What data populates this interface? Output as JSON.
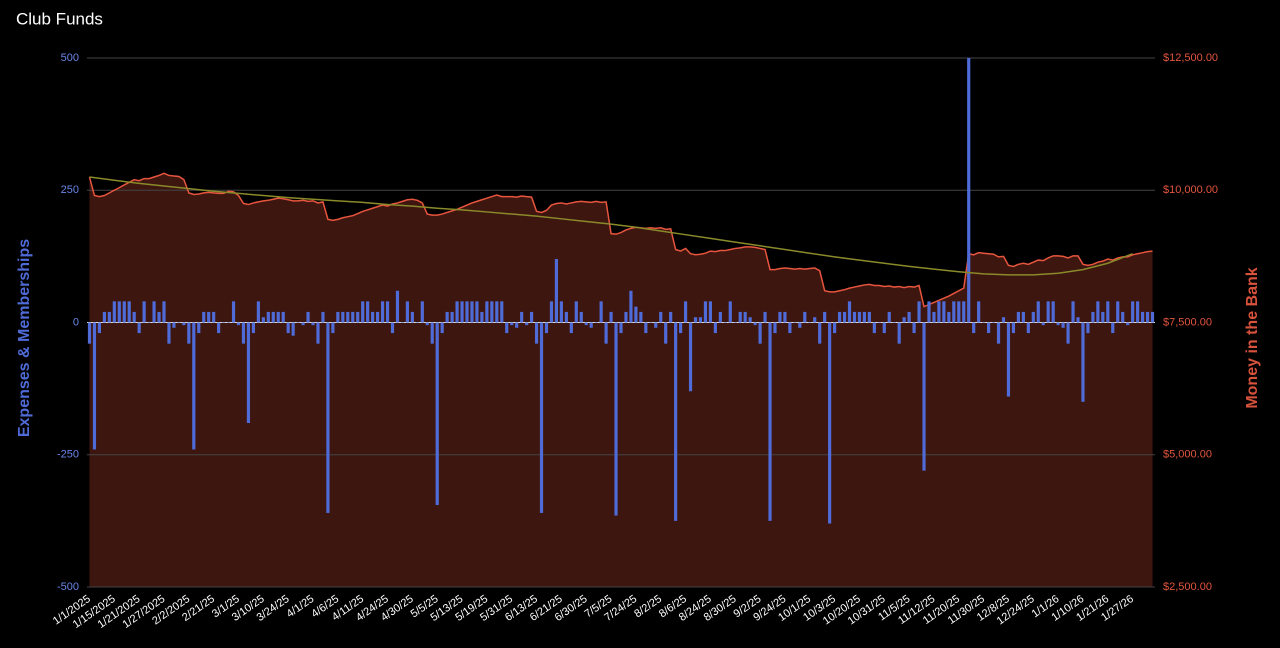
{
  "chart_data": {
    "type": "bar",
    "title": "Club Funds",
    "ylabel": "Expenses & Memberships",
    "y2label": "Money in the Bank",
    "ylim": [
      -500,
      500
    ],
    "yticks": [
      500,
      250,
      0,
      -250,
      -500
    ],
    "y2lim": [
      2500,
      12500
    ],
    "y2ticks": [
      {
        "value": 12500,
        "label": "$12,500.00"
      },
      {
        "value": 10000,
        "label": "$10,000.00"
      },
      {
        "value": 7500,
        "label": "$7,500.00"
      },
      {
        "value": 5000,
        "label": "$5,000.00"
      },
      {
        "value": 2500,
        "label": "$2,500.00"
      }
    ],
    "grid": true,
    "categories": [
      "1/1/2025",
      null,
      null,
      null,
      null,
      "1/15/2025",
      null,
      null,
      null,
      null,
      "1/21/2025",
      null,
      null,
      null,
      null,
      "1/27/2025",
      null,
      null,
      null,
      null,
      "2/2/2025",
      null,
      null,
      null,
      null,
      "2/21/25",
      null,
      null,
      null,
      null,
      "3/1/25",
      null,
      null,
      null,
      null,
      "3/10/25",
      null,
      null,
      null,
      null,
      "3/24/25",
      null,
      null,
      null,
      null,
      "4/1/25",
      null,
      null,
      null,
      null,
      "4/6/25",
      null,
      null,
      null,
      null,
      "4/11/25",
      null,
      null,
      null,
      null,
      "4/24/25",
      null,
      null,
      null,
      null,
      "4/30/25",
      null,
      null,
      null,
      null,
      "5/5/25",
      null,
      null,
      null,
      null,
      "5/13/25",
      null,
      null,
      null,
      null,
      "5/19/25",
      null,
      null,
      null,
      null,
      "5/31/25",
      null,
      null,
      null,
      null,
      "6/13/25",
      null,
      null,
      null,
      null,
      "6/21/25",
      null,
      null,
      null,
      null,
      "6/30/25",
      null,
      null,
      null,
      null,
      "7/5/25",
      null,
      null,
      null,
      null,
      "7/24/25",
      null,
      null,
      null,
      null,
      "8/2/25",
      null,
      null,
      null,
      null,
      "8/6/25",
      null,
      null,
      null,
      null,
      "8/24/25",
      null,
      null,
      null,
      null,
      "8/30/25",
      null,
      null,
      null,
      null,
      "9/2/25",
      null,
      null,
      null,
      null,
      "9/24/25",
      null,
      null,
      null,
      null,
      "10/1/25",
      null,
      null,
      null,
      null,
      "10/3/25",
      null,
      null,
      null,
      null,
      "10/20/25",
      null,
      null,
      null,
      null,
      "10/31/25",
      null,
      null,
      null,
      null,
      "11/5/25",
      null,
      null,
      null,
      null,
      "11/12/25",
      null,
      null,
      null,
      null,
      "11/20/25",
      null,
      null,
      null,
      null,
      "11/30/25",
      null,
      null,
      null,
      null,
      "12/8/25",
      null,
      null,
      null,
      null,
      "12/24/25",
      null,
      null,
      null,
      null,
      "1/1/26",
      null,
      null,
      null,
      null,
      "1/10/26",
      null,
      null,
      null,
      null,
      "1/21/26",
      null,
      null,
      null,
      null,
      "1/27/26",
      null,
      null,
      null,
      null
    ],
    "series": [
      {
        "color": "#4f6bd8",
        "values": [
          -40,
          -240,
          -20,
          20,
          20,
          40,
          40,
          40,
          40,
          20,
          -20,
          40,
          0,
          40,
          20,
          40,
          -40,
          -10,
          0,
          -5,
          -40,
          -240,
          -20,
          20,
          20,
          20,
          -20,
          0,
          0,
          40,
          -5,
          -40,
          -190,
          -20,
          40,
          10,
          20,
          20,
          20,
          20,
          -20,
          -25,
          0,
          -5,
          20,
          -5,
          -40,
          20,
          -360,
          -20,
          20,
          20,
          20,
          20,
          20,
          40,
          40,
          20,
          20,
          40,
          40,
          -20,
          60,
          0,
          40,
          20,
          0,
          40,
          -5,
          -40,
          -345,
          -20,
          20,
          20,
          40,
          40,
          40,
          40,
          40,
          20,
          40,
          40,
          40,
          40,
          -20,
          -5,
          -10,
          20,
          -5,
          20,
          -40,
          -360,
          -20,
          40,
          120,
          40,
          20,
          -20,
          40,
          20,
          -5,
          -10,
          0,
          40,
          -40,
          20,
          -365,
          -20,
          20,
          60,
          30,
          20,
          -20,
          0,
          -10,
          20,
          -40,
          20,
          -375,
          -20,
          40,
          -130,
          10,
          10,
          40,
          40,
          -20,
          20,
          0,
          40,
          0,
          20,
          20,
          10,
          -5,
          -40,
          20,
          -375,
          -20,
          20,
          20,
          -20,
          0,
          -10,
          20,
          0,
          10,
          -40,
          20,
          -380,
          -20,
          20,
          20,
          40,
          20,
          20,
          20,
          20,
          -20,
          0,
          -20,
          20,
          0,
          -40,
          10,
          20,
          -20,
          40,
          -280,
          40,
          20,
          40,
          40,
          20,
          40,
          40,
          40,
          500,
          -20,
          40,
          0,
          -20,
          0,
          -40,
          10,
          -140,
          -20,
          20,
          20,
          -20,
          20,
          40,
          -5,
          40,
          40,
          -5,
          -10,
          -40,
          40,
          10,
          -150,
          -20,
          20,
          40,
          20,
          40,
          -20,
          40,
          20,
          -5,
          40,
          40,
          20,
          20,
          20
        ]
      },
      {
        "axis": "y2",
        "color": "#e8553e",
        "fill": "#3d1610",
        "values": [
          10250,
          9900,
          9880,
          9900,
          9950,
          10000,
          10050,
          10100,
          10150,
          10200,
          10180,
          10220,
          10220,
          10250,
          10280,
          10320,
          10280,
          10270,
          10260,
          10200,
          9950,
          9920,
          9930,
          9950,
          9960,
          9950,
          9940,
          9940,
          9980,
          9970,
          9900,
          9750,
          9730,
          9760,
          9780,
          9800,
          9810,
          9830,
          9850,
          9840,
          9820,
          9800,
          9800,
          9810,
          9790,
          9800,
          9760,
          9780,
          9450,
          9430,
          9450,
          9480,
          9500,
          9520,
          9560,
          9600,
          9630,
          9660,
          9690,
          9720,
          9700,
          9740,
          9760,
          9790,
          9820,
          9830,
          9810,
          9760,
          9550,
          9530,
          9530,
          9550,
          9580,
          9610,
          9640,
          9680,
          9720,
          9760,
          9790,
          9820,
          9850,
          9880,
          9910,
          9880,
          9880,
          9880,
          9870,
          9890,
          9880,
          9870,
          9600,
          9580,
          9620,
          9720,
          9750,
          9760,
          9740,
          9760,
          9780,
          9790,
          9780,
          9770,
          9790,
          9770,
          9780,
          9180,
          9170,
          9200,
          9250,
          9280,
          9300,
          9290,
          9280,
          9290,
          9280,
          9290,
          9260,
          9270,
          8880,
          8850,
          8900,
          8800,
          8780,
          8790,
          8810,
          8850,
          8840,
          8860,
          8860,
          8880,
          8900,
          8910,
          8930,
          8930,
          8920,
          8900,
          8880,
          8500,
          8500,
          8520,
          8530,
          8520,
          8510,
          8520,
          8510,
          8520,
          8530,
          8480,
          8100,
          8080,
          8080,
          8100,
          8120,
          8150,
          8170,
          8190,
          8210,
          8220,
          8200,
          8200,
          8180,
          8190,
          8170,
          8180,
          8160,
          8180,
          8170,
          8200,
          7800,
          7840,
          7880,
          7920,
          7960,
          8000,
          8050,
          8100,
          8150,
          8800,
          8780,
          8820,
          8810,
          8800,
          8790,
          8740,
          8750,
          8580,
          8560,
          8600,
          8620,
          8600,
          8640,
          8680,
          8670,
          8720,
          8760,
          8760,
          8750,
          8720,
          8760,
          8760,
          8600,
          8580,
          8600,
          8640,
          8660,
          8700,
          8680,
          8720,
          8740,
          8740,
          8780,
          8800,
          8820,
          8840,
          8850
        ]
      }
    ],
    "trendline": {
      "axis": "y2",
      "color": "#8a8a2a",
      "values": [
        10250,
        10190,
        10130,
        10080,
        10030,
        9980,
        9940,
        9900,
        9860,
        9830,
        9800,
        9770,
        9730,
        9700,
        9660,
        9630,
        9590,
        9550,
        9510,
        9460,
        9410,
        9360,
        9300,
        9230,
        9160,
        9090,
        9020,
        8950,
        8880,
        8810,
        8740,
        8680,
        8620,
        8560,
        8510,
        8460,
        8420,
        8400,
        8400,
        8430,
        8500,
        8620,
        8800
      ]
    }
  }
}
